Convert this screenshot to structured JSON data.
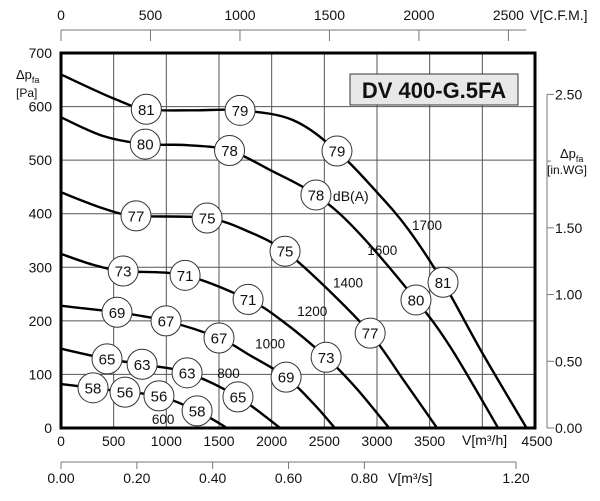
{
  "chart_data": {
    "type": "line",
    "title": "DV 400-G.5FA",
    "xlabel": "V[m³/h]",
    "ylabel": "Δp_fa [Pa]",
    "ylabel_main": "Δp",
    "ylabel_sub": "fa",
    "ylabel_unit": "[Pa]",
    "xlim": [
      0,
      4500
    ],
    "ylim": [
      0,
      700
    ],
    "grid": true,
    "x_ticks": [
      0,
      500,
      1000,
      1500,
      2000,
      2500,
      3000,
      3500,
      4500
    ],
    "y_ticks": [
      0,
      100,
      200,
      300,
      400,
      500,
      600,
      700
    ],
    "top_axis": {
      "label": "V[C.F.M.]",
      "ticks": [
        0,
        500,
        1000,
        1500,
        2000,
        2500
      ]
    },
    "bottom_axis": {
      "label": "V[m³/s]",
      "ticks": [
        "0.00",
        "0.20",
        "0.40",
        "0.60",
        "0.80",
        "1.20"
      ],
      "values": [
        0,
        0.2,
        0.4,
        0.6,
        0.8,
        1.2
      ]
    },
    "right_axis": {
      "label_main": "Δp",
      "label_sub": "fa",
      "label_unit": "[in.WG]",
      "ticks": [
        "0.00",
        "0.50",
        "1.00",
        "1.50",
        "2.50"
      ],
      "values": [
        0,
        0.5,
        1.0,
        1.5,
        2.5
      ],
      "minor": [
        2.0
      ]
    },
    "dba_unit_label": "dB(A)",
    "series": [
      {
        "name": "1700",
        "label_at": [
          3475,
          379
        ],
        "x": [
          0,
          500,
          810,
          1250,
          1700,
          2200,
          2620,
          3000,
          3300,
          3627,
          4000,
          4420
        ],
        "y": [
          660,
          615,
          595,
          593,
          593,
          575,
          517,
          440,
          370,
          272,
          140,
          0
        ],
        "noise": [
          {
            "x": 810,
            "y": 595,
            "dba": "81"
          },
          {
            "x": 1700,
            "y": 593,
            "dba": "79"
          },
          {
            "x": 2620,
            "y": 517,
            "dba": "79"
          },
          {
            "x": 3627,
            "y": 272,
            "dba": "81"
          }
        ]
      },
      {
        "name": "1600",
        "label_at": [
          3050,
          332
        ],
        "x": [
          0,
          400,
          800,
          1200,
          1600,
          2000,
          2420,
          2800,
          3370,
          3700,
          4150
        ],
        "y": [
          580,
          545,
          530,
          528,
          518,
          480,
          435,
          370,
          239,
          150,
          0
        ],
        "noise": [
          {
            "x": 800,
            "y": 530,
            "dba": "80"
          },
          {
            "x": 1600,
            "y": 518,
            "dba": "78"
          },
          {
            "x": 2420,
            "y": 435,
            "dba": "78"
          },
          {
            "x": 3370,
            "y": 239,
            "dba": "80"
          }
        ]
      },
      {
        "name": "1400",
        "label_at": [
          2725,
          272
        ],
        "x": [
          0,
          400,
          712,
          1387,
          1800,
          2127,
          2500,
          2935,
          3250,
          3570
        ],
        "y": [
          440,
          410,
          396,
          392,
          365,
          330,
          265,
          177,
          90,
          0
        ],
        "noise": [
          {
            "x": 712,
            "y": 396,
            "dba": "77"
          },
          {
            "x": 1387,
            "y": 392,
            "dba": "75"
          },
          {
            "x": 2127,
            "y": 330,
            "dba": "75"
          },
          {
            "x": 2935,
            "y": 177,
            "dba": "77"
          }
        ]
      },
      {
        "name": "1200",
        "label_at": [
          2385,
          218
        ],
        "x": [
          0,
          300,
          590,
          1178,
          1776,
          2100,
          2517,
          2800,
          3115
        ],
        "y": [
          325,
          305,
          293,
          285,
          240,
          200,
          132,
          75,
          0
        ],
        "noise": [
          {
            "x": 590,
            "y": 293,
            "dba": "73"
          },
          {
            "x": 1178,
            "y": 285,
            "dba": "71"
          },
          {
            "x": 1776,
            "y": 240,
            "dba": "71"
          },
          {
            "x": 2517,
            "y": 132,
            "dba": "73"
          }
        ]
      },
      {
        "name": "1000",
        "label_at": [
          1985,
          158
        ],
        "x": [
          0,
          532,
          997,
          1500,
          1800,
          2137,
          2400,
          2600
        ],
        "y": [
          228,
          216,
          200,
          168,
          135,
          95,
          45,
          0
        ],
        "noise": [
          {
            "x": 532,
            "y": 216,
            "dba": "69"
          },
          {
            "x": 997,
            "y": 200,
            "dba": "67"
          },
          {
            "x": 1500,
            "y": 168,
            "dba": "67"
          },
          {
            "x": 2137,
            "y": 95,
            "dba": "69"
          }
        ]
      },
      {
        "name": "800",
        "label_at": [
          1590,
          103
        ],
        "x": [
          0,
          437,
          770,
          1197,
          1680,
          2080
        ],
        "y": [
          148,
          129,
          119,
          103,
          58,
          0
        ],
        "noise": [
          {
            "x": 437,
            "y": 129,
            "dba": "65"
          },
          {
            "x": 770,
            "y": 119,
            "dba": "63"
          },
          {
            "x": 1197,
            "y": 103,
            "dba": "63"
          },
          {
            "x": 1680,
            "y": 58,
            "dba": "65"
          }
        ]
      },
      {
        "name": "600",
        "label_at": [
          970,
          17
        ],
        "x": [
          0,
          304,
          608,
          930,
          1292,
          1576
        ],
        "y": [
          82,
          75,
          67,
          60,
          32,
          0
        ],
        "noise": [
          {
            "x": 304,
            "y": 75,
            "dba": "58"
          },
          {
            "x": 608,
            "y": 67,
            "dba": "56"
          },
          {
            "x": 930,
            "y": 60,
            "dba": "56"
          },
          {
            "x": 1292,
            "y": 32,
            "dba": "58"
          }
        ]
      }
    ],
    "colors": {
      "curve": "#000000",
      "title_box": "#e8e8e8",
      "grid": "#555555"
    }
  }
}
